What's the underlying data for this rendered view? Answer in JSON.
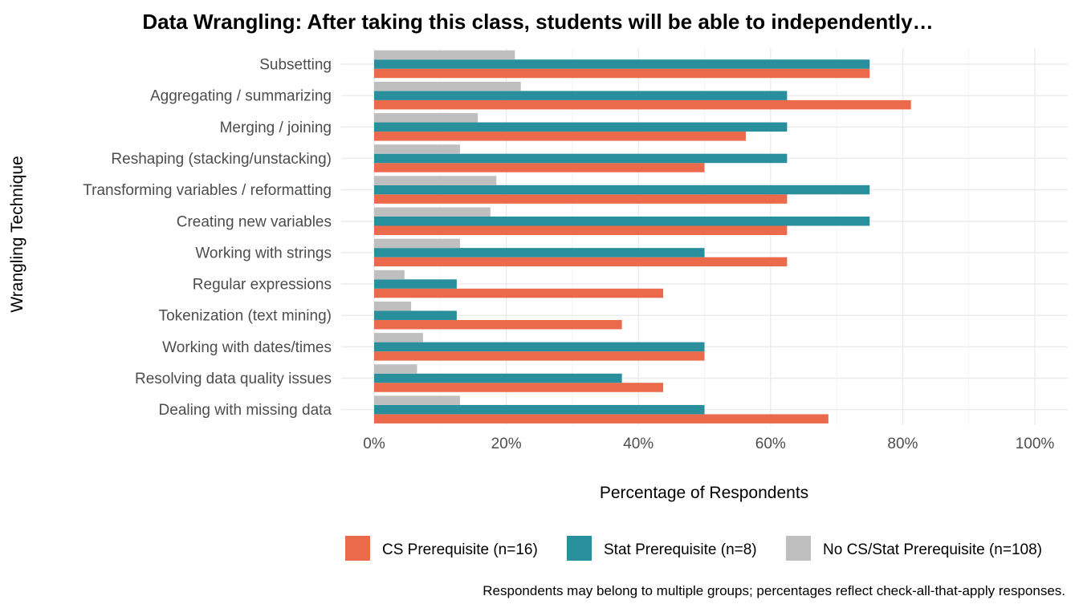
{
  "chart_data": {
    "type": "bar",
    "orientation": "horizontal",
    "title": "Data Wrangling: After taking this class, students will be able to independently…",
    "xlabel": "Percentage of Respondents",
    "ylabel": "Wrangling Technique",
    "xlim": [
      0,
      100
    ],
    "x_ticks": [
      "0%",
      "20%",
      "40%",
      "60%",
      "80%",
      "100%"
    ],
    "x_tick_values": [
      0,
      20,
      40,
      60,
      80,
      100
    ],
    "grid": true,
    "legend_position": "bottom",
    "caption": "Respondents may belong to multiple groups; percentages reflect check-all-that-apply responses.",
    "categories": [
      "Subsetting",
      "Aggregating / summarizing",
      "Merging / joining",
      "Reshaping (stacking/unstacking)",
      "Transforming variables / reformatting",
      "Creating new variables",
      "Working with strings",
      "Regular expressions",
      "Tokenization (text mining)",
      "Working with dates/times",
      "Resolving data quality issues",
      "Dealing with missing data"
    ],
    "series": [
      {
        "name": "CS Prerequisite (n=16)",
        "color": "#eb6a4c",
        "values": [
          75.0,
          81.25,
          56.25,
          50.0,
          62.5,
          62.5,
          62.5,
          43.75,
          37.5,
          50.0,
          43.75,
          68.75
        ]
      },
      {
        "name": "Stat Prerequisite (n=8)",
        "color": "#2a8f9c",
        "values": [
          75.0,
          62.5,
          62.5,
          62.5,
          75.0,
          75.0,
          50.0,
          12.5,
          12.5,
          50.0,
          37.5,
          50.0
        ]
      },
      {
        "name": "No CS/Stat Prerequisite (n=108)",
        "color": "#bfbfbf",
        "values": [
          21.3,
          22.2,
          15.7,
          13.0,
          18.5,
          17.6,
          13.0,
          4.6,
          5.6,
          7.4,
          6.5,
          13.0
        ]
      }
    ]
  }
}
